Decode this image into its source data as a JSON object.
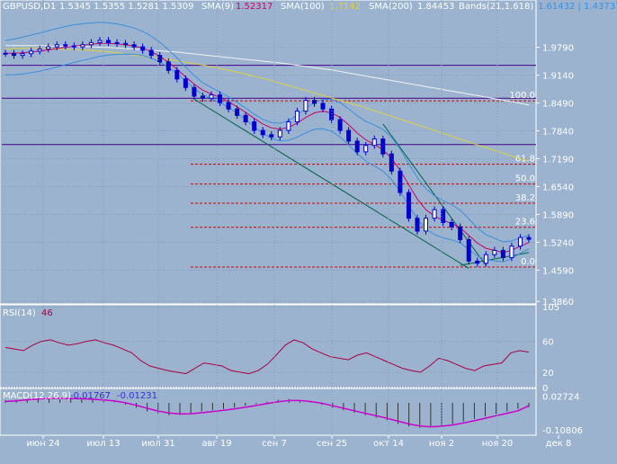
{
  "header": {
    "symbol": "GBPUSD,D1",
    "ohlc": "1.5345  1.5355  1.5281  1.5309",
    "sma9_label": "SMA(9)",
    "sma9_value": "1.52317",
    "sma100_label": "SMA(100)",
    "sma100_value": "1.7142",
    "sma200_label": "SMA(200)",
    "sma200_value": "1.84453",
    "bands_label": "Bands(21,1.618)",
    "bands_value": "1.61432 | 1.43733"
  },
  "colors": {
    "background": "#9bb3cf",
    "grid": "#7f9ab8",
    "candle": "#0000cc",
    "sma9": "#cc0066",
    "sma100": "#e0d040",
    "sma200": "#f2f2f2",
    "bands": "#3a8fe0",
    "rsi": "#aa0044",
    "macd_signal": "#cc00cc",
    "fib": "#cc0000",
    "level": "#440088",
    "trend": "#006644"
  },
  "chart_data": [
    {
      "type": "candlestick",
      "panel": "price",
      "title": "GBPUSD,D1",
      "ylim": [
        1.38,
        2.06
      ],
      "y_ticks": [
        1.979,
        1.914,
        1.849,
        1.784,
        1.719,
        1.654,
        1.589,
        1.524,
        1.459,
        1.386
      ],
      "x_tick_labels": [
        "июн 24",
        "июл 13",
        "июл 31",
        "авг 19",
        "сен 7",
        "сен 25",
        "окт 14",
        "ноя 2",
        "ноя 20",
        "дек 8"
      ],
      "fib_levels": [
        {
          "label": "100.0",
          "value": 1.854
        },
        {
          "label": "61.8",
          "value": 1.706
        },
        {
          "label": "50.0",
          "value": 1.66
        },
        {
          "label": "38.2",
          "value": 1.615
        },
        {
          "label": "23.6",
          "value": 1.559
        },
        {
          "label": "0.0",
          "value": 1.466
        }
      ],
      "horizontal_levels": [
        1.937,
        1.86,
        1.752
      ],
      "close": [
        1.965,
        1.96,
        1.964,
        1.97,
        1.975,
        1.98,
        1.985,
        1.982,
        1.98,
        1.985,
        1.99,
        1.995,
        1.99,
        1.988,
        1.985,
        1.98,
        1.972,
        1.96,
        1.945,
        1.925,
        1.905,
        1.885,
        1.865,
        1.86,
        1.868,
        1.85,
        1.835,
        1.82,
        1.805,
        1.785,
        1.775,
        1.77,
        1.785,
        1.805,
        1.83,
        1.855,
        1.848,
        1.835,
        1.81,
        1.785,
        1.76,
        1.735,
        1.75,
        1.765,
        1.73,
        1.69,
        1.64,
        1.58,
        1.55,
        1.58,
        1.6,
        1.57,
        1.56,
        1.53,
        1.48,
        1.475,
        1.495,
        1.505,
        1.488,
        1.515,
        1.535,
        1.5309
      ],
      "sma9": [
        1.965,
        1.965,
        1.966,
        1.968,
        1.97,
        1.973,
        1.976,
        1.979,
        1.982,
        1.984,
        1.986,
        1.988,
        1.988,
        1.987,
        1.985,
        1.982,
        1.977,
        1.969,
        1.958,
        1.944,
        1.928,
        1.91,
        1.893,
        1.879,
        1.87,
        1.862,
        1.852,
        1.84,
        1.827,
        1.813,
        1.8,
        1.791,
        1.788,
        1.792,
        1.802,
        1.815,
        1.826,
        1.83,
        1.826,
        1.815,
        1.798,
        1.779,
        1.763,
        1.752,
        1.74,
        1.72,
        1.692,
        1.658,
        1.625,
        1.6,
        1.585,
        1.575,
        1.568,
        1.558,
        1.54,
        1.522,
        1.51,
        1.505,
        1.5,
        1.505,
        1.515,
        1.5232
      ],
      "sma100": [
        1.975,
        1.976,
        1.977,
        1.977,
        1.976,
        1.975,
        1.974,
        1.973,
        1.972,
        1.97,
        1.968,
        1.965,
        1.962,
        1.959,
        1.956,
        1.953,
        1.949,
        1.945,
        1.941,
        1.937,
        1.932,
        1.927,
        1.922,
        1.916,
        1.91,
        1.904,
        1.897,
        1.89,
        1.883,
        1.876,
        1.869,
        1.862,
        1.855,
        1.848,
        1.841,
        1.833,
        1.825,
        1.817,
        1.809,
        1.801,
        1.793,
        1.785,
        1.777,
        1.768,
        1.76,
        1.752,
        1.744,
        1.736,
        1.728,
        1.72,
        1.7142
      ],
      "sma200": [
        1.983,
        1.983,
        1.983,
        1.983,
        1.982,
        1.982,
        1.981,
        1.98,
        1.979,
        1.978,
        1.976,
        1.974,
        1.972,
        1.97,
        1.968,
        1.965,
        1.962,
        1.959,
        1.956,
        1.953,
        1.95,
        1.947,
        1.944,
        1.941,
        1.937,
        1.933,
        1.929,
        1.925,
        1.92,
        1.915,
        1.91,
        1.905,
        1.9,
        1.895,
        1.89,
        1.885,
        1.88,
        1.875,
        1.87,
        1.865,
        1.86,
        1.855,
        1.85,
        1.8445
      ]
    },
    {
      "type": "line",
      "panel": "rsi",
      "title": "RSI(14)",
      "value_label": "46",
      "ylim": [
        0,
        105
      ],
      "y_ticks": [
        105,
        60,
        20,
        0
      ],
      "values": [
        52,
        50,
        48,
        55,
        60,
        62,
        58,
        55,
        57,
        60,
        62,
        58,
        55,
        50,
        45,
        35,
        28,
        25,
        22,
        20,
        18,
        25,
        32,
        30,
        28,
        22,
        20,
        18,
        22,
        30,
        42,
        55,
        62,
        58,
        50,
        45,
        40,
        38,
        36,
        42,
        45,
        40,
        35,
        30,
        25,
        22,
        20,
        28,
        38,
        35,
        30,
        25,
        22,
        28,
        30,
        32,
        45,
        48,
        46
      ]
    },
    {
      "type": "bar",
      "panel": "macd",
      "title": "MACD(12,26,9)",
      "value_labels": [
        "-0.01767",
        "-0.01231"
      ],
      "ylim": [
        -0.13,
        0.05
      ],
      "y_ticks": [
        0.02724,
        -0.10806
      ],
      "histogram": [
        0.01,
        0.012,
        0.015,
        0.018,
        0.02,
        0.018,
        0.016,
        0.015,
        0.012,
        0.008,
        0.002,
        -0.008,
        -0.02,
        -0.035,
        -0.045,
        -0.05,
        -0.048,
        -0.042,
        -0.035,
        -0.03,
        -0.025,
        -0.02,
        -0.012,
        -0.005,
        0.005,
        0.012,
        0.015,
        0.01,
        0.002,
        -0.008,
        -0.02,
        -0.03,
        -0.04,
        -0.05,
        -0.06,
        -0.07,
        -0.085,
        -0.095,
        -0.1,
        -0.098,
        -0.092,
        -0.085,
        -0.075,
        -0.065,
        -0.055,
        -0.045,
        -0.035,
        -0.025,
        -0.018
      ],
      "signal": [
        0.005,
        0.008,
        0.012,
        0.015,
        0.018,
        0.018,
        0.017,
        0.016,
        0.014,
        0.011,
        0.007,
        0.0,
        -0.01,
        -0.022,
        -0.033,
        -0.041,
        -0.045,
        -0.044,
        -0.04,
        -0.035,
        -0.03,
        -0.025,
        -0.018,
        -0.011,
        -0.003,
        0.004,
        0.009,
        0.009,
        0.005,
        -0.002,
        -0.012,
        -0.022,
        -0.032,
        -0.042,
        -0.052,
        -0.062,
        -0.074,
        -0.085,
        -0.093,
        -0.096,
        -0.094,
        -0.089,
        -0.081,
        -0.072,
        -0.062,
        -0.052,
        -0.042,
        -0.032,
        -0.012
      ]
    }
  ]
}
